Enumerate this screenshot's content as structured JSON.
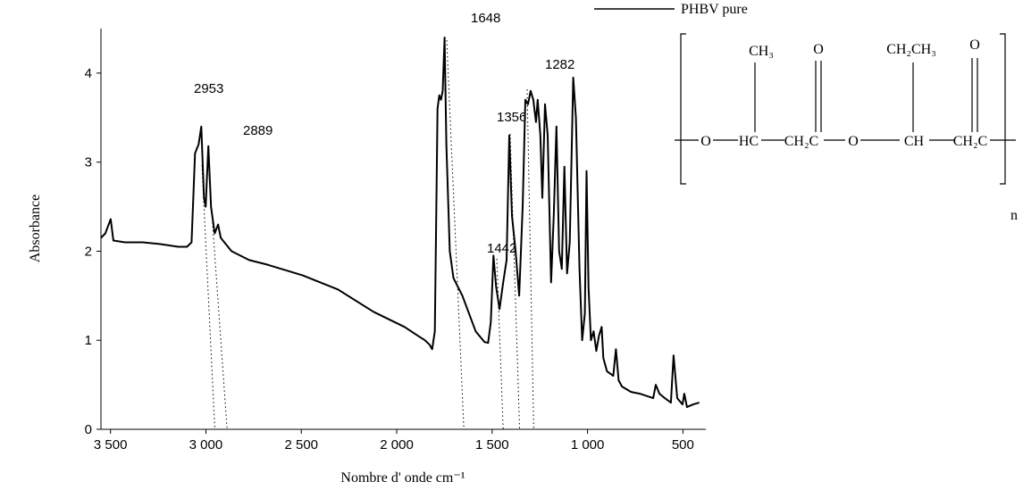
{
  "chart_data": {
    "type": "line",
    "x_label": "Nombre d' onde cm⁻¹",
    "y_label": "Absorbance",
    "xlim": [
      3550,
      380
    ],
    "ylim": [
      0,
      4.5
    ],
    "xticks": [
      {
        "value": 3500,
        "label": "3 500"
      },
      {
        "value": 3000,
        "label": "3 000"
      },
      {
        "value": 2500,
        "label": "2 500"
      },
      {
        "value": 2000,
        "label": "2 000"
      },
      {
        "value": 1500,
        "label": "1 500"
      },
      {
        "value": 1000,
        "label": "1 000"
      },
      500
    ],
    "yticks": [
      0,
      1,
      2,
      3,
      4
    ],
    "x": [
      3550,
      3527,
      3499,
      3485,
      3424,
      3331,
      3238,
      3145,
      3099,
      3075,
      3057,
      3038,
      3024,
      3010,
      3001,
      2987,
      2973,
      2954,
      2936,
      2922,
      2866,
      2773,
      2680,
      2494,
      2308,
      2122,
      1959,
      1889,
      1852,
      1828,
      1814,
      1800,
      1786,
      1777,
      1768,
      1759,
      1749,
      1740,
      1722,
      1703,
      1656,
      1586,
      1540,
      1521,
      1507,
      1493,
      1479,
      1461,
      1442,
      1424,
      1410,
      1396,
      1377,
      1358,
      1340,
      1326,
      1312,
      1298,
      1284,
      1270,
      1261,
      1247,
      1237,
      1223,
      1209,
      1191,
      1177,
      1163,
      1149,
      1135,
      1121,
      1107,
      1093,
      1075,
      1061,
      1042,
      1028,
      1014,
      1005,
      995,
      982,
      968,
      954,
      940,
      926,
      917,
      898,
      865,
      851,
      837,
      819,
      772,
      726,
      656,
      642,
      623,
      595,
      563,
      549,
      530,
      502,
      493,
      479,
      446,
      414
    ],
    "series": [
      {
        "name": "PHBV pure",
        "color": "#000000",
        "values": [
          2.15,
          2.2,
          2.36,
          2.12,
          2.1,
          2.1,
          2.08,
          2.05,
          2.05,
          2.1,
          3.1,
          3.2,
          3.4,
          2.6,
          2.5,
          3.18,
          2.5,
          2.2,
          2.3,
          2.15,
          2.0,
          1.9,
          1.85,
          1.73,
          1.57,
          1.32,
          1.15,
          1.05,
          1.0,
          0.95,
          0.9,
          1.1,
          3.6,
          3.75,
          3.7,
          3.8,
          4.4,
          3.2,
          2.0,
          1.7,
          1.5,
          1.1,
          0.98,
          0.97,
          1.2,
          1.95,
          1.6,
          1.35,
          1.65,
          1.9,
          3.3,
          2.4,
          2.0,
          1.5,
          2.5,
          3.7,
          3.65,
          3.8,
          3.7,
          3.45,
          3.7,
          3.3,
          2.6,
          3.65,
          3.3,
          1.65,
          2.4,
          3.4,
          2.0,
          1.8,
          2.95,
          1.75,
          2.1,
          3.95,
          3.5,
          1.8,
          1.0,
          1.3,
          2.9,
          1.6,
          1.0,
          1.1,
          0.88,
          1.05,
          1.15,
          0.8,
          0.65,
          0.6,
          0.9,
          0.55,
          0.48,
          0.42,
          0.4,
          0.35,
          0.5,
          0.4,
          0.35,
          0.3,
          0.83,
          0.35,
          0.28,
          0.4,
          0.25,
          0.28,
          0.3
        ]
      }
    ],
    "peak_labels": [
      2953,
      2889,
      1648,
      1442,
      1356,
      1282
    ]
  },
  "structure": {
    "groups": [
      "O",
      "HC",
      "CH₂C",
      "O",
      "CH",
      "CH₂C"
    ],
    "substituents": [
      "CH₃",
      "O",
      "CH₂CH₃",
      "O"
    ],
    "repeat": "n"
  }
}
